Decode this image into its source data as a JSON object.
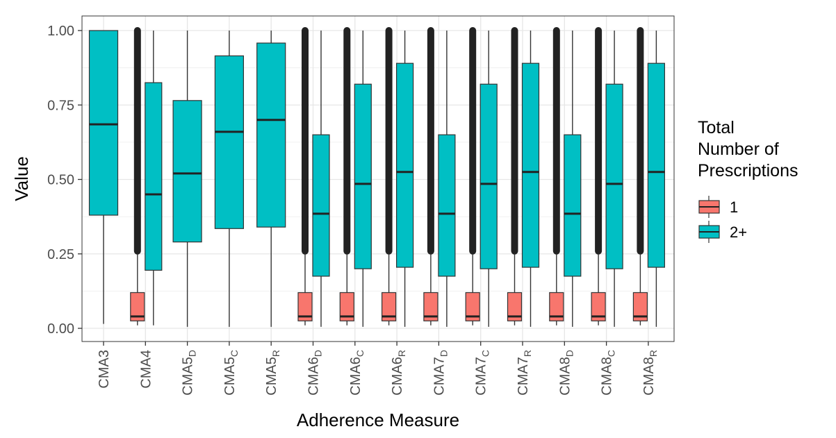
{
  "chart_data": {
    "type": "boxplot",
    "xlabel": "Adherence Measure",
    "ylabel": "Value",
    "ylim": [
      0,
      1
    ],
    "yticks": [
      "0.00",
      "0.25",
      "0.50",
      "0.75",
      "1.00"
    ],
    "grid": true,
    "legend": {
      "title_lines": [
        "Total",
        "Number of",
        "Prescriptions"
      ],
      "placement": "right",
      "entries": [
        {
          "label": "1",
          "color": "#F8766D"
        },
        {
          "label": "2+",
          "color": "#00BFC4"
        }
      ]
    },
    "categories": [
      {
        "base": "CMA3",
        "sub": ""
      },
      {
        "base": "CMA4",
        "sub": ""
      },
      {
        "base": "CMA5",
        "sub": "D"
      },
      {
        "base": "CMA5",
        "sub": "C"
      },
      {
        "base": "CMA5",
        "sub": "R"
      },
      {
        "base": "CMA6",
        "sub": "D"
      },
      {
        "base": "CMA6",
        "sub": "C"
      },
      {
        "base": "CMA6",
        "sub": "R"
      },
      {
        "base": "CMA7",
        "sub": "D"
      },
      {
        "base": "CMA7",
        "sub": "C"
      },
      {
        "base": "CMA7",
        "sub": "R"
      },
      {
        "base": "CMA8",
        "sub": "D"
      },
      {
        "base": "CMA8",
        "sub": "C"
      },
      {
        "base": "CMA8",
        "sub": "R"
      }
    ],
    "series": [
      {
        "name": "1",
        "color": "#F8766D",
        "boxes": [
          null,
          {
            "low": 0.01,
            "q1": 0.025,
            "median": 0.04,
            "q3": 0.12,
            "high": 0.25,
            "outliers_to": 1.0
          },
          null,
          null,
          null,
          {
            "low": 0.01,
            "q1": 0.025,
            "median": 0.04,
            "q3": 0.12,
            "high": 0.25,
            "outliers_to": 1.0
          },
          {
            "low": 0.01,
            "q1": 0.025,
            "median": 0.04,
            "q3": 0.12,
            "high": 0.25,
            "outliers_to": 1.0
          },
          {
            "low": 0.01,
            "q1": 0.025,
            "median": 0.04,
            "q3": 0.12,
            "high": 0.25,
            "outliers_to": 1.0
          },
          {
            "low": 0.01,
            "q1": 0.025,
            "median": 0.04,
            "q3": 0.12,
            "high": 0.25,
            "outliers_to": 1.0
          },
          {
            "low": 0.01,
            "q1": 0.025,
            "median": 0.04,
            "q3": 0.12,
            "high": 0.25,
            "outliers_to": 1.0
          },
          {
            "low": 0.01,
            "q1": 0.025,
            "median": 0.04,
            "q3": 0.12,
            "high": 0.25,
            "outliers_to": 1.0
          },
          {
            "low": 0.01,
            "q1": 0.025,
            "median": 0.04,
            "q3": 0.12,
            "high": 0.25,
            "outliers_to": 1.0
          },
          {
            "low": 0.01,
            "q1": 0.025,
            "median": 0.04,
            "q3": 0.12,
            "high": 0.25,
            "outliers_to": 1.0
          },
          {
            "low": 0.01,
            "q1": 0.025,
            "median": 0.04,
            "q3": 0.12,
            "high": 0.25,
            "outliers_to": 1.0
          }
        ]
      },
      {
        "name": "2+",
        "color": "#00BFC4",
        "boxes": [
          {
            "low": 0.015,
            "q1": 0.38,
            "median": 0.685,
            "q3": 1.0,
            "high": 1.0
          },
          {
            "low": 0.01,
            "q1": 0.195,
            "median": 0.45,
            "q3": 0.825,
            "high": 1.0
          },
          {
            "low": 0.005,
            "q1": 0.29,
            "median": 0.52,
            "q3": 0.765,
            "high": 1.0
          },
          {
            "low": 0.005,
            "q1": 0.335,
            "median": 0.66,
            "q3": 0.915,
            "high": 1.0
          },
          {
            "low": 0.005,
            "q1": 0.34,
            "median": 0.7,
            "q3": 0.958,
            "high": 1.0
          },
          {
            "low": 0.005,
            "q1": 0.175,
            "median": 0.385,
            "q3": 0.65,
            "high": 1.0
          },
          {
            "low": 0.005,
            "q1": 0.2,
            "median": 0.485,
            "q3": 0.82,
            "high": 1.0
          },
          {
            "low": 0.005,
            "q1": 0.205,
            "median": 0.525,
            "q3": 0.89,
            "high": 1.0
          },
          {
            "low": 0.005,
            "q1": 0.175,
            "median": 0.385,
            "q3": 0.65,
            "high": 1.0
          },
          {
            "low": 0.005,
            "q1": 0.2,
            "median": 0.485,
            "q3": 0.82,
            "high": 1.0
          },
          {
            "low": 0.005,
            "q1": 0.205,
            "median": 0.525,
            "q3": 0.89,
            "high": 1.0
          },
          {
            "low": 0.005,
            "q1": 0.175,
            "median": 0.385,
            "q3": 0.65,
            "high": 1.0
          },
          {
            "low": 0.005,
            "q1": 0.2,
            "median": 0.485,
            "q3": 0.82,
            "high": 1.0
          },
          {
            "low": 0.005,
            "q1": 0.205,
            "median": 0.525,
            "q3": 0.89,
            "high": 1.0
          }
        ]
      }
    ]
  }
}
